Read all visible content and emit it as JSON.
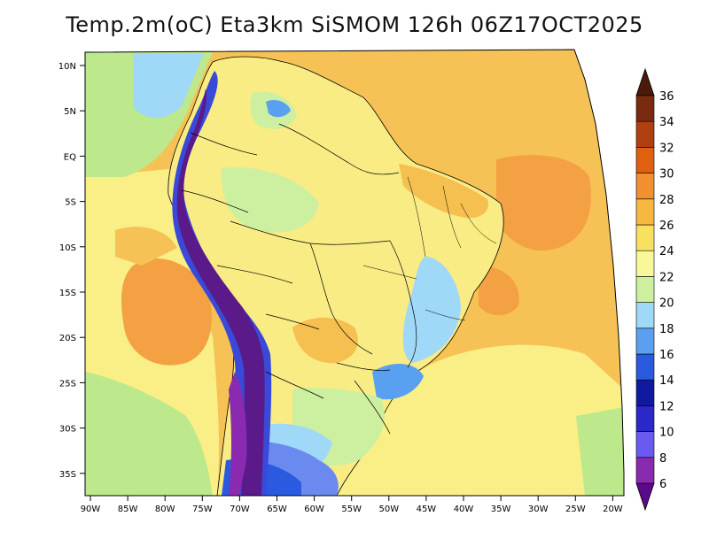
{
  "title": "Temp.2m(oC) Eta3km SiSMOM 126h 06Z17OCT2025",
  "axes": {
    "lat_labels": [
      "10N",
      "5N",
      "EQ",
      "5S",
      "10S",
      "15S",
      "20S",
      "25S",
      "30S",
      "35S"
    ],
    "lon_labels": [
      "90W",
      "85W",
      "80W",
      "75W",
      "70W",
      "65W",
      "60W",
      "55W",
      "50W",
      "45W",
      "40W",
      "35W",
      "30W",
      "25W",
      "20W"
    ]
  },
  "colorbar": {
    "levels": [
      "6",
      "8",
      "10",
      "12",
      "14",
      "16",
      "18",
      "20",
      "22",
      "24",
      "26",
      "28",
      "30",
      "32",
      "34",
      "36"
    ],
    "colors": [
      "#5a0a8a",
      "#8a2ab0",
      "#6a5af0",
      "#2a28c8",
      "#101aa0",
      "#2a5ae0",
      "#5aa0f0",
      "#a0d8f8",
      "#ccf0a0",
      "#f8f898",
      "#f8e060",
      "#f8b840",
      "#f09030",
      "#e06010",
      "#b04010",
      "#7a2a10",
      "#4a1a0a"
    ]
  },
  "palette": {
    "ocean": "#f6c255",
    "ocean_warm": "#f3a142",
    "ocean_cool": "#f9ef86",
    "ocean_cold": "#bde88c",
    "land": "#f9ec84",
    "land_warm": "#f6c050",
    "andes_cold": "#3a4ad8",
    "andes_peak": "#5a1a8a",
    "south_cold": "#6a8af0",
    "border": "#000000"
  }
}
